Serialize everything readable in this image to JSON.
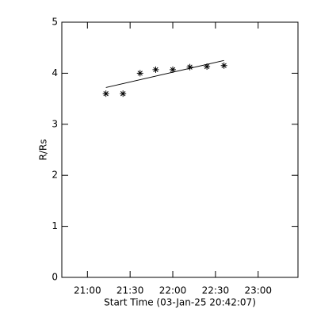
{
  "chart_data": {
    "type": "scatter",
    "x_label": "Start Time (03-Jan-25 20:42:07)",
    "y_label": "R/Rs",
    "x": [
      1273,
      1285,
      1297,
      1308,
      1320,
      1332,
      1344,
      1356
    ],
    "values": [
      3.6,
      3.6,
      4.0,
      4.07,
      4.07,
      4.12,
      4.13,
      4.15
    ],
    "color": "#000000",
    "fit": {
      "x": [
        1273,
        1356
      ],
      "values": [
        3.72,
        4.25
      ]
    },
    "xlim": [
      1242,
      1408
    ],
    "xticks": [
      {
        "value": 1260,
        "label": "21:00"
      },
      {
        "value": 1290,
        "label": "21:30"
      },
      {
        "value": 1320,
        "label": "22:00"
      },
      {
        "value": 1350,
        "label": "22:30"
      },
      {
        "value": 1380,
        "label": "23:00"
      }
    ],
    "ylim": [
      0,
      5
    ],
    "yticks": [
      0,
      1,
      2,
      3,
      4,
      5
    ]
  }
}
